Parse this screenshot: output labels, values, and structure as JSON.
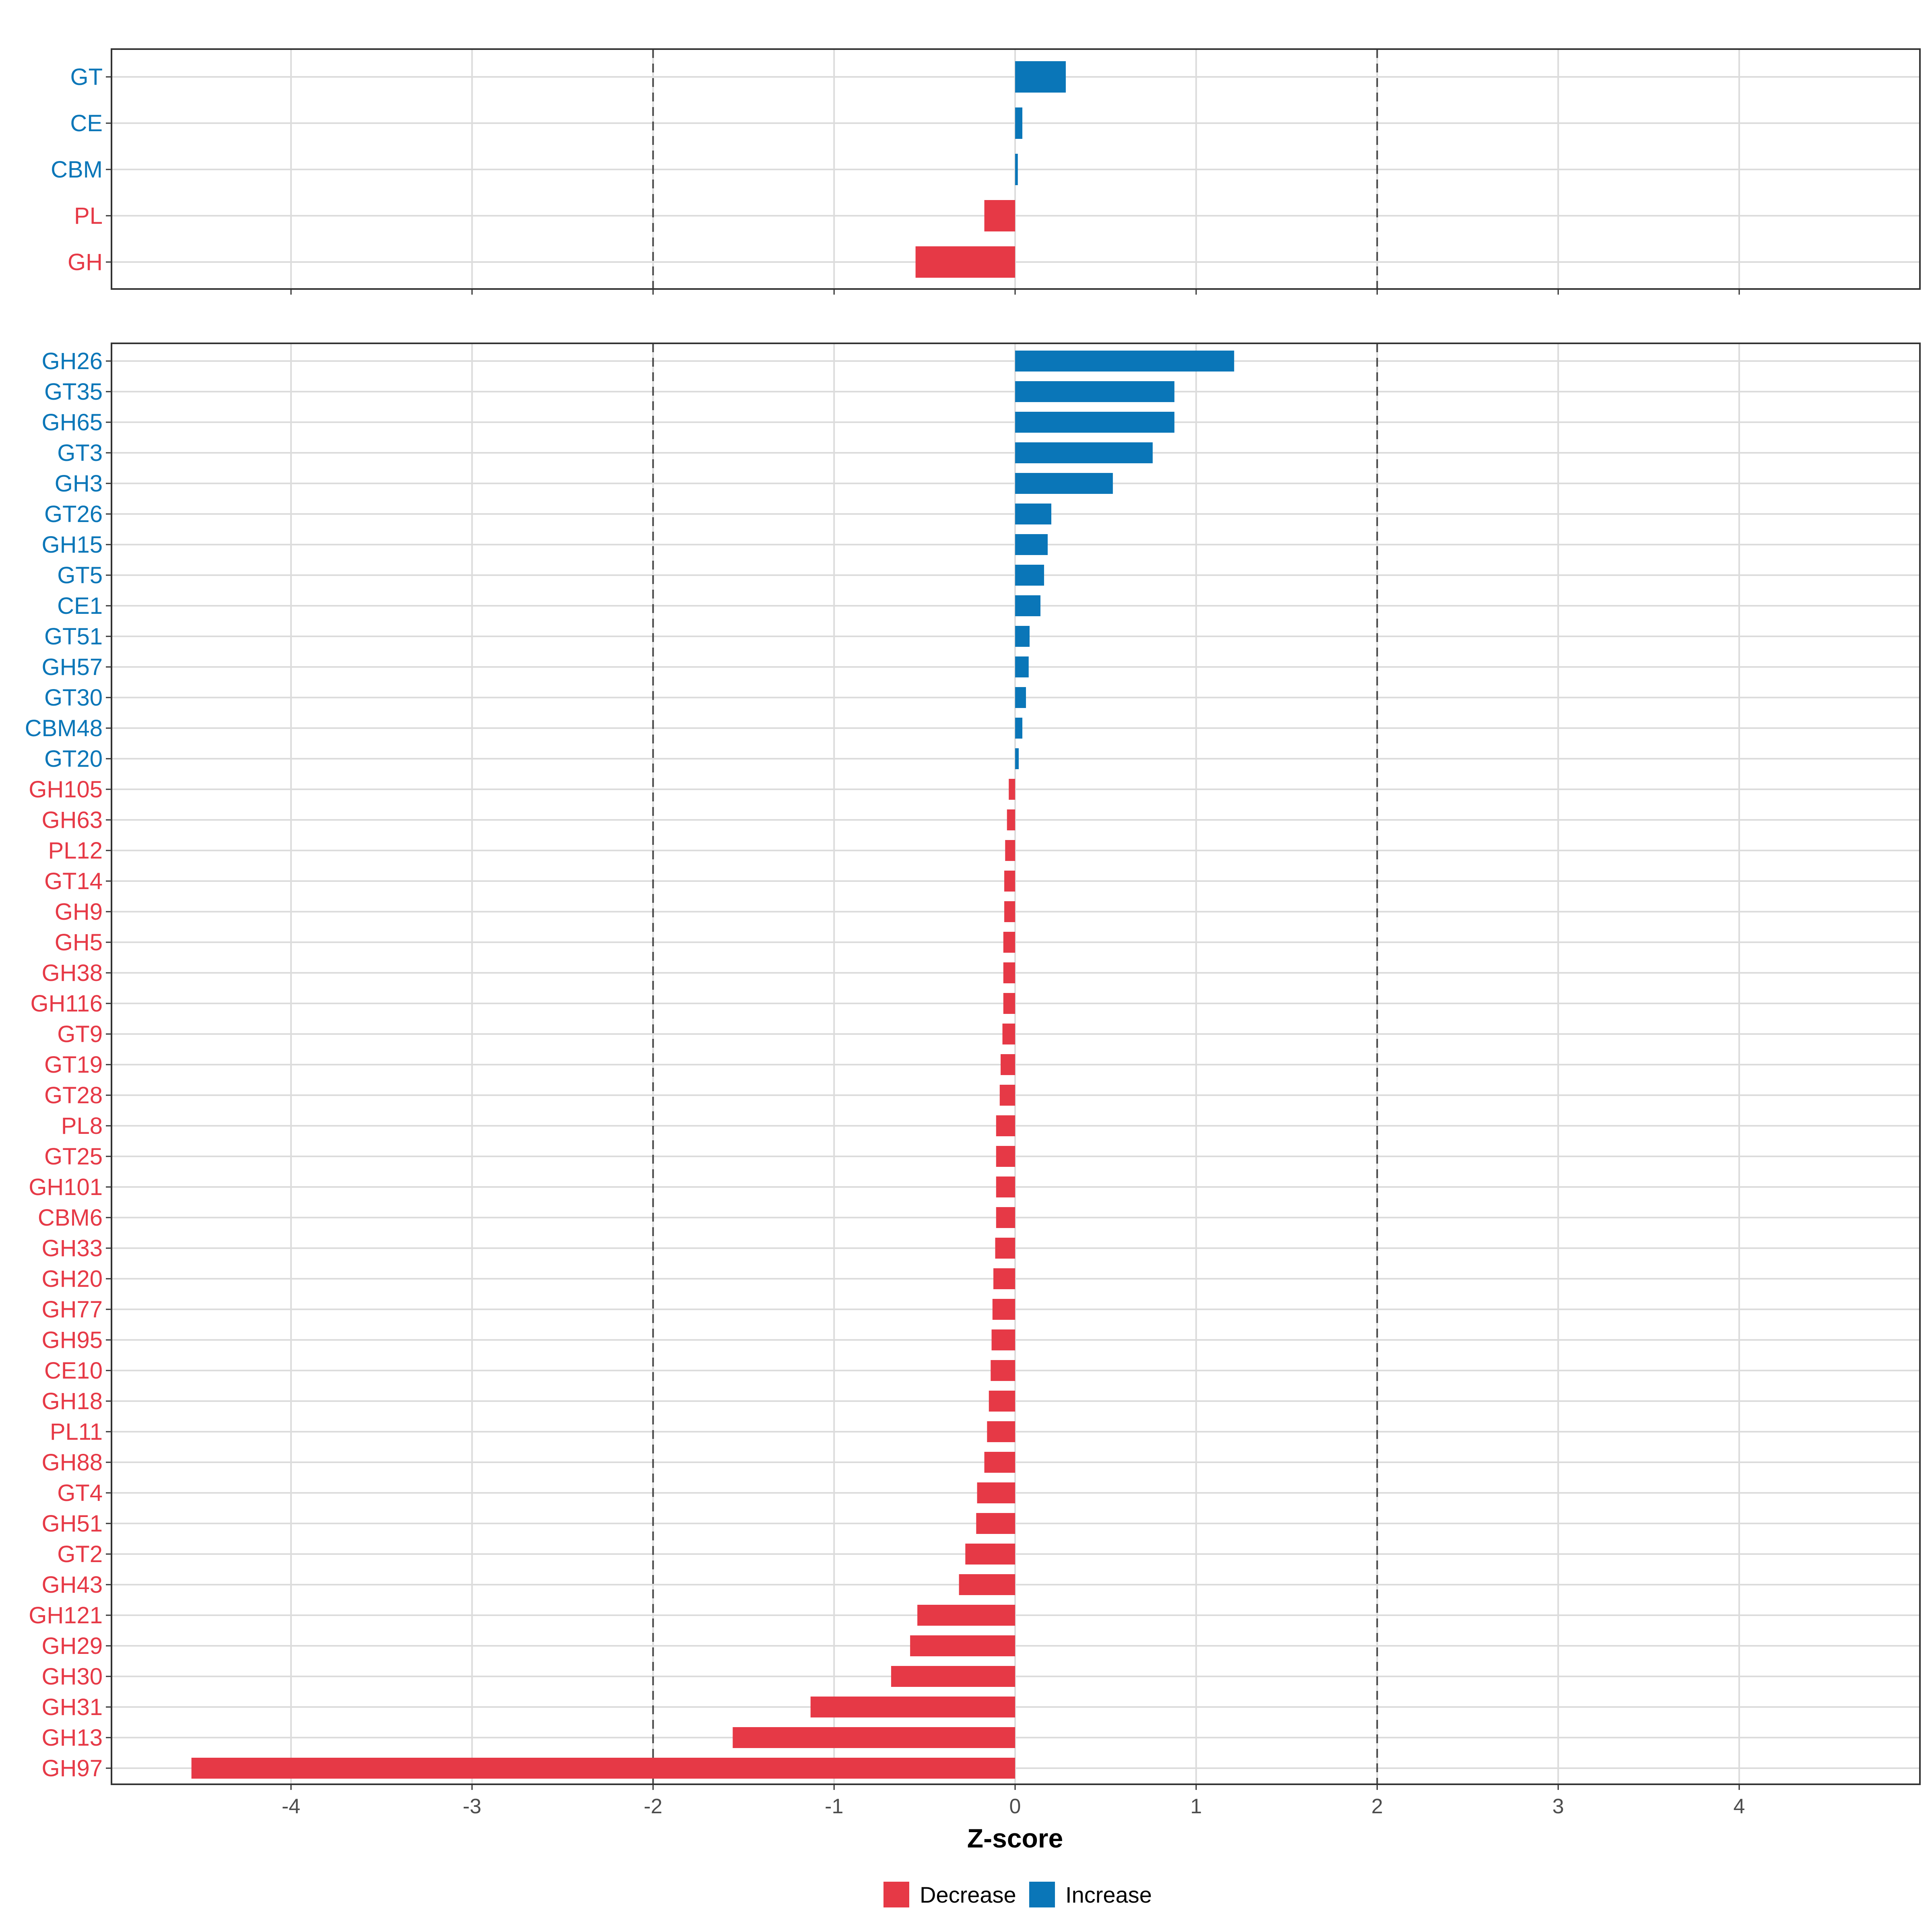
{
  "chart_data": {
    "type": "bar",
    "orientation": "horizontal",
    "xlabel": "Z-score",
    "xlim": [
      -5,
      5
    ],
    "x_ticks": [
      "-4",
      "-3",
      "-2",
      "-1",
      "0",
      "1",
      "2",
      "3",
      "4"
    ],
    "reference_lines": [
      -2,
      2
    ],
    "colors": {
      "Decrease": "#e63946",
      "Increase": "#0a76b8"
    },
    "legend": [
      {
        "name": "Decrease",
        "color": "#e63946"
      },
      {
        "name": "Increase",
        "color": "#0a76b8"
      }
    ],
    "panels": [
      {
        "name": "families",
        "categories": [
          "GT",
          "CE",
          "CBM",
          "PL",
          "GH"
        ],
        "values": [
          0.28,
          0.04,
          0.015,
          -0.17,
          -0.55
        ]
      },
      {
        "name": "subfamilies",
        "categories": [
          "GH26",
          "GT35",
          "GH65",
          "GT3",
          "GH3",
          "GT26",
          "GH15",
          "GT5",
          "CE1",
          "GT51",
          "GH57",
          "GT30",
          "CBM48",
          "GT20",
          "GH105",
          "GH63",
          "PL12",
          "GT14",
          "GH9",
          "GH5",
          "GH38",
          "GH116",
          "GT9",
          "GT19",
          "GT28",
          "PL8",
          "GT25",
          "GH101",
          "CBM6",
          "GH33",
          "GH20",
          "GH77",
          "GH95",
          "CE10",
          "GH18",
          "PL11",
          "GH88",
          "GT4",
          "GH51",
          "GT2",
          "GH43",
          "GH121",
          "GH29",
          "GH30",
          "GH31",
          "GH13",
          "GH97"
        ],
        "values": [
          1.21,
          0.88,
          0.88,
          0.76,
          0.54,
          0.2,
          0.18,
          0.16,
          0.14,
          0.08,
          0.075,
          0.06,
          0.04,
          0.02,
          -0.035,
          -0.045,
          -0.055,
          -0.06,
          -0.06,
          -0.065,
          -0.065,
          -0.065,
          -0.07,
          -0.08,
          -0.085,
          -0.105,
          -0.105,
          -0.105,
          -0.105,
          -0.11,
          -0.12,
          -0.125,
          -0.13,
          -0.135,
          -0.145,
          -0.155,
          -0.17,
          -0.21,
          -0.215,
          -0.275,
          -0.31,
          -0.54,
          -0.58,
          -0.685,
          -1.13,
          -1.56,
          -4.55
        ]
      }
    ]
  }
}
